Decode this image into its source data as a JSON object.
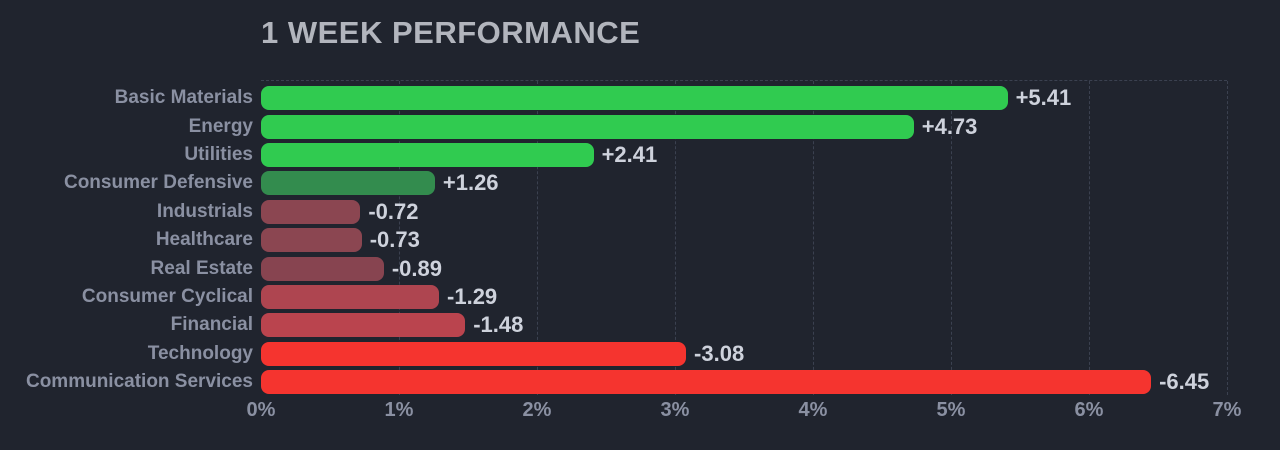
{
  "title": "1 WEEK PERFORMANCE",
  "chart_data": {
    "type": "bar",
    "orientation": "horizontal",
    "title": "1 WEEK PERFORMANCE",
    "categories": [
      "Basic Materials",
      "Energy",
      "Utilities",
      "Consumer Defensive",
      "Industrials",
      "Healthcare",
      "Real Estate",
      "Consumer Cyclical",
      "Financial",
      "Technology",
      "Communication Services"
    ],
    "values": [
      5.41,
      4.73,
      2.41,
      1.26,
      -0.72,
      -0.73,
      -0.89,
      -1.29,
      -1.48,
      -3.08,
      -6.45
    ],
    "value_labels": [
      "+5.41",
      "+4.73",
      "+2.41",
      "+1.26",
      "-0.72",
      "-0.73",
      "-0.89",
      "-1.29",
      "-1.48",
      "-3.08",
      "-6.45"
    ],
    "bar_colors": [
      "#30cb50",
      "#30cb50",
      "#30cb50",
      "#338c4e",
      "#8b4651",
      "#8b4651",
      "#874450",
      "#ae4550",
      "#ba444e",
      "#f5342f",
      "#f5342f"
    ],
    "x_tick_labels": [
      "0%",
      "1%",
      "2%",
      "3%",
      "4%",
      "5%",
      "6%",
      "7%"
    ],
    "xlim": [
      0,
      7
    ],
    "grid": "dashed vertical gridlines at each 1% plus dashed top border",
    "legend": "none",
    "note": "negative values drawn as bars of absolute length in red shades"
  },
  "colors": {
    "background": "#20242e",
    "title_text": "#b2b5bd",
    "category_text": "#8a90a2",
    "value_text": "#ced2dc",
    "axis_text": "#8a90a2",
    "gridline": "#3b4150",
    "positive_strong": "#30cb50",
    "positive_weak": "#338c4e",
    "negative_weak": "#8b4651",
    "negative_mid": "#ba444e",
    "negative_strong": "#f5342f"
  }
}
